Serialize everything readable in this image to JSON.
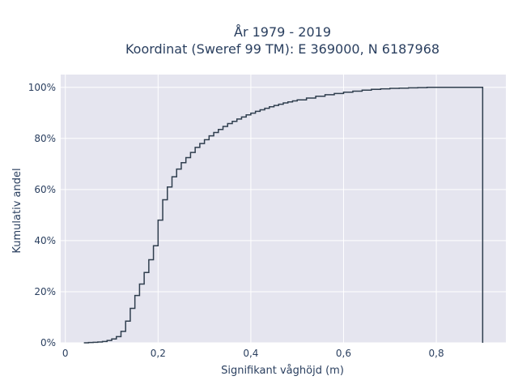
{
  "chart_data": {
    "type": "line",
    "step": true,
    "title_lines": [
      "År 1979 - 2019",
      "Koordinat (Sweref 99 TM): E 369000, N 6187968"
    ],
    "xlabel": "Signifikant våghöjd (m)",
    "ylabel": "Kumulativ andel",
    "xlim": [
      -0.01,
      0.95
    ],
    "ylim": [
      0,
      1.05
    ],
    "x_ticks": [
      0,
      0.2,
      0.4,
      0.6,
      0.8
    ],
    "x_tick_labels": [
      "0",
      "0,2",
      "0,4",
      "0,6",
      "0,8"
    ],
    "y_ticks": [
      0,
      0.2,
      0.4,
      0.6,
      0.8,
      1.0
    ],
    "y_tick_labels": [
      "0%",
      "20%",
      "40%",
      "60%",
      "80%",
      "100%"
    ],
    "grid": true,
    "colors": {
      "line": "#2f3e4e",
      "plot_bg": "#e5e5ef",
      "grid": "#ffffff"
    },
    "series": [
      {
        "x": [
          0.04,
          0.05,
          0.06,
          0.07,
          0.08,
          0.09,
          0.1,
          0.11,
          0.12,
          0.13,
          0.14,
          0.15,
          0.16,
          0.17,
          0.18,
          0.19,
          0.2,
          0.21,
          0.22,
          0.23,
          0.24,
          0.25,
          0.26,
          0.27,
          0.28,
          0.29,
          0.3,
          0.31,
          0.32,
          0.33,
          0.34,
          0.35,
          0.36,
          0.37,
          0.38,
          0.39,
          0.4,
          0.41,
          0.42,
          0.43,
          0.44,
          0.45,
          0.46,
          0.47,
          0.48,
          0.49,
          0.5,
          0.52,
          0.54,
          0.56,
          0.58,
          0.6,
          0.62,
          0.64,
          0.66,
          0.68,
          0.7,
          0.72,
          0.74,
          0.76,
          0.78,
          0.8,
          0.9
        ],
        "y": [
          0.0,
          0.001,
          0.002,
          0.003,
          0.005,
          0.009,
          0.015,
          0.024,
          0.045,
          0.085,
          0.135,
          0.185,
          0.23,
          0.275,
          0.325,
          0.38,
          0.48,
          0.56,
          0.61,
          0.65,
          0.68,
          0.705,
          0.725,
          0.745,
          0.765,
          0.78,
          0.795,
          0.81,
          0.823,
          0.835,
          0.847,
          0.858,
          0.867,
          0.876,
          0.884,
          0.892,
          0.899,
          0.906,
          0.912,
          0.918,
          0.924,
          0.929,
          0.934,
          0.939,
          0.943,
          0.947,
          0.951,
          0.958,
          0.965,
          0.971,
          0.976,
          0.981,
          0.985,
          0.989,
          0.992,
          0.994,
          0.996,
          0.997,
          0.998,
          0.999,
          1.0,
          1.0,
          1.0
        ]
      }
    ]
  }
}
